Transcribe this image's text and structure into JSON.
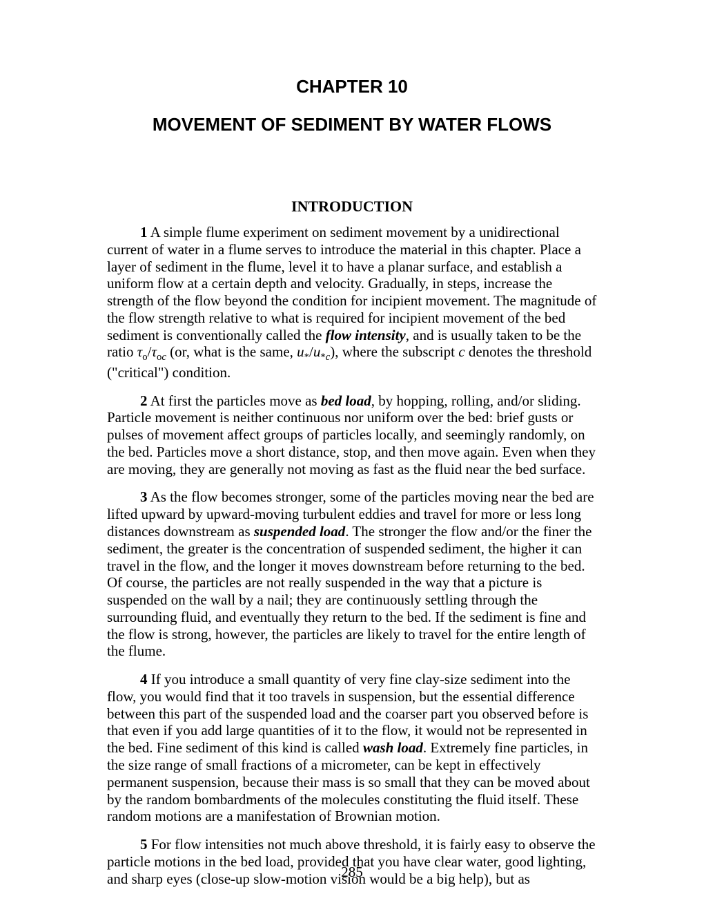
{
  "chapterNumber": "CHAPTER 10",
  "chapterTitle": "MOVEMENT OF SEDIMENT BY WATER FLOWS",
  "sectionHeading": "INTRODUCTION",
  "pageNumber": "285",
  "paragraphs": {
    "p1_num": "1",
    "p1_a": "  A simple flume experiment on sediment movement by a unidirectional current of water in a flume serves to introduce the material in this chapter.  Place a layer of sediment in the flume, level it to have a planar surface, and establish a uniform flow at a certain depth and velocity.  Gradually, in steps, increase the strength of the flow beyond the condition for incipient movement.  The magnitude of the flow strength relative to what is required for incipient movement of the bed sediment is conventionally called the ",
    "p1_term1": "flow intensity",
    "p1_b": ", and is usually taken to be the ratio  ",
    "p1_tau1": "τ",
    "p1_sub1": "o",
    "p1_slash1": "/",
    "p1_tau2": "τ",
    "p1_sub2": "o",
    "p1_sub2c": "c",
    "p1_c": " (or, what is the same, ",
    "p1_u1": "u",
    "p1_star1": "*",
    "p1_slash2": "/",
    "p1_u2": "u",
    "p1_star2": "*",
    "p1_starc": "c",
    "p1_d": "), where the subscript ",
    "p1_c_ital": "c",
    "p1_e": " denotes the threshold (\"critical\") condition.",
    "p2_num": "2",
    "p2_a": "  At first the particles move as ",
    "p2_term1": "bed load",
    "p2_b": ", by hopping, rolling, and/or sliding.  Particle movement is neither continuous nor uniform over the bed:  brief gusts or pulses of movement affect groups of particles locally, and seemingly randomly, on the bed.  Particles move a short distance, stop, and then move again.  Even when they are moving, they are generally not moving as fast as the fluid near the bed surface.",
    "p3_num": "3",
    "p3_a": "  As the flow becomes stronger, some of the particles moving near the bed are lifted upward by upward-moving turbulent eddies and travel for more or less long distances downstream as ",
    "p3_term1": "suspended load",
    "p3_b": ".  The stronger the flow and/or the finer the sediment, the greater is the concentration of suspended sediment, the higher it can travel in the flow, and the longer it moves downstream before returning to the bed.  Of course, the particles are not really suspended in the way that a picture is suspended on the wall by a nail; they are continuously settling through the surrounding fluid, and eventually they return to the bed.  If the sediment is fine and the flow is strong, however, the particles are likely to travel for the entire length of the flume.",
    "p4_num": "4",
    "p4_a": "  If you introduce a small quantity of very fine clay-size sediment into the flow, you would find that it too travels in suspension, but the essential difference between this part of the suspended load and the coarser part you observed before is that even if you add large quantities of it to the flow, it would not be represented in the bed.  Fine sediment of this kind is called ",
    "p4_term1": "wash load",
    "p4_b": ".  Extremely fine particles, in the size range of small fractions of a micrometer, can be kept in effectively permanent suspension, because their mass is so small that they can be moved about by the random bombardments of the molecules constituting the fluid itself.  These random motions are a manifestation of Brownian motion.",
    "p5_num": "5",
    "p5_a": "  For flow intensities not much above threshold, it is fairly easy to observe the particle motions in the bed load, provided that you have clear water, good lighting, and sharp eyes (close-up slow-motion vision would be a big help), but as"
  }
}
